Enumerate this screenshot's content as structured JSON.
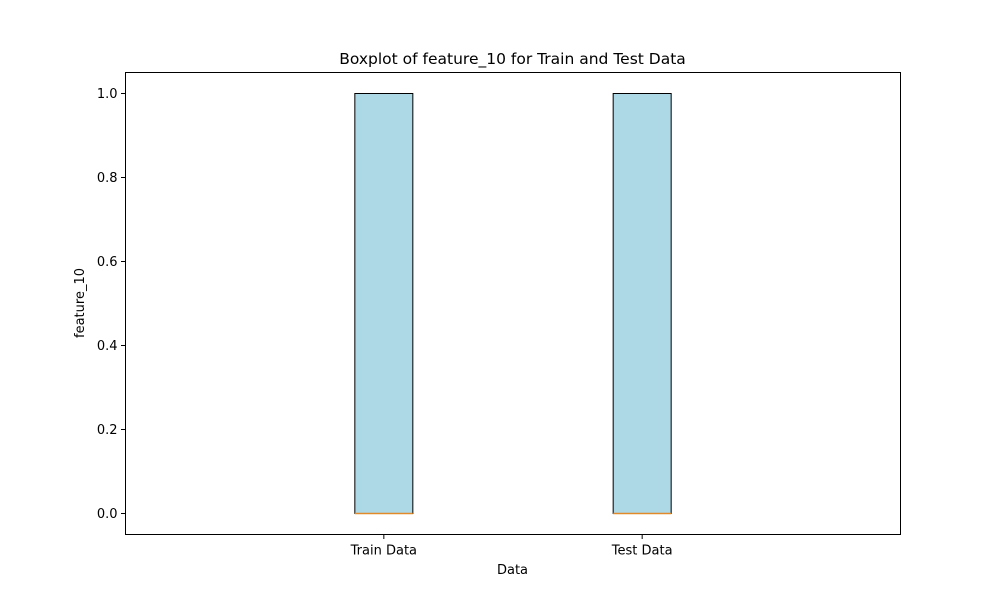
{
  "chart_data": {
    "type": "box",
    "title": "Boxplot of feature_10 for Train and Test Data",
    "xlabel": "Data",
    "ylabel": "feature_10",
    "categories": [
      "Train Data",
      "Test Data"
    ],
    "boxes": [
      {
        "label": "Train Data",
        "whislo": 0.0,
        "q1": 0.0,
        "med": 0.0,
        "q3": 1.0,
        "whishi": 1.0
      },
      {
        "label": "Test Data",
        "whislo": 0.0,
        "q1": 0.0,
        "med": 0.0,
        "q3": 1.0,
        "whishi": 1.0
      }
    ],
    "ylim": [
      -0.05,
      1.05
    ],
    "yticks": [
      0.0,
      0.2,
      0.4,
      0.6,
      0.8,
      1.0
    ],
    "ytick_labels": [
      "0.0",
      "0.2",
      "0.4",
      "0.6",
      "0.8",
      "1.0"
    ],
    "grid": false,
    "colors": {
      "box_fill": "#add8e6",
      "box_edge": "#000000",
      "median": "#e08a2c"
    }
  }
}
